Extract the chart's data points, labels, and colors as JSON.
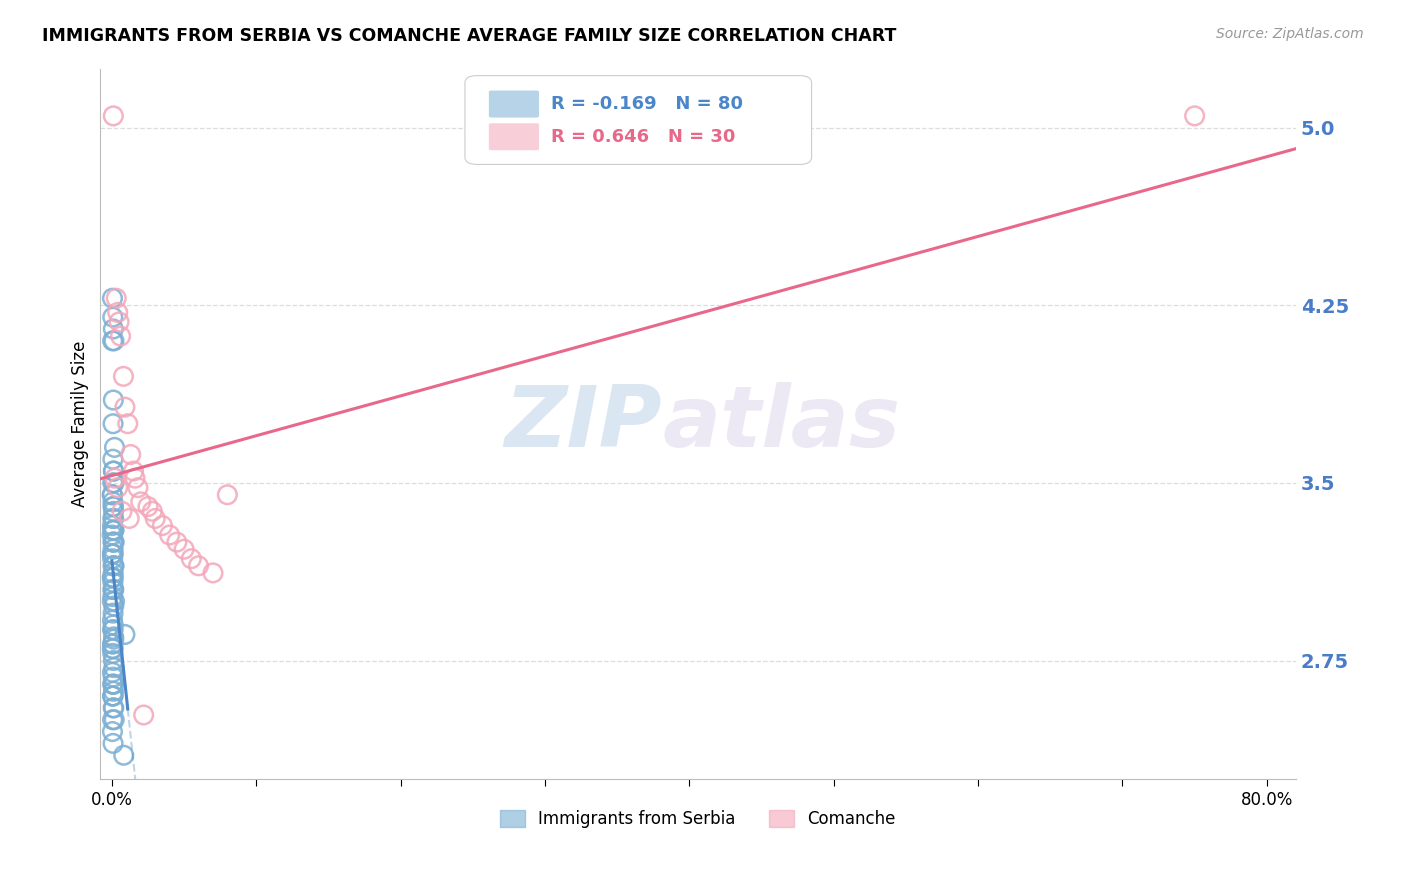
{
  "title": "IMMIGRANTS FROM SERBIA VS COMANCHE AVERAGE FAMILY SIZE CORRELATION CHART",
  "source": "Source: ZipAtlas.com",
  "ylabel": "Average Family Size",
  "xlim": [
    -0.008,
    0.82
  ],
  "ylim": [
    2.25,
    5.25
  ],
  "yticks": [
    2.75,
    3.5,
    4.25,
    5.0
  ],
  "xticks": [
    0.0,
    0.1,
    0.2,
    0.3,
    0.4,
    0.5,
    0.6,
    0.7,
    0.8
  ],
  "xticklabels": [
    "0.0%",
    "",
    "",
    "",
    "",
    "",
    "",
    "",
    "80.0%"
  ],
  "serbia_R": -0.169,
  "serbia_N": 80,
  "comanche_R": 0.646,
  "comanche_N": 30,
  "serbia_color": "#7bafd4",
  "comanche_color": "#f4a7b9",
  "serbia_line_color": "#4a86c8",
  "comanche_line_color": "#e8688a",
  "legend1": "Immigrants from Serbia",
  "legend2": "Comanche",
  "serbia_x": [
    0.0005,
    0.001,
    0.0008,
    0.0012,
    0.0015,
    0.0003,
    0.0007,
    0.0009,
    0.0011,
    0.0006,
    0.0004,
    0.0013,
    0.0002,
    0.0016,
    0.0008,
    0.001,
    0.0005,
    0.0014,
    0.0009,
    0.0003,
    0.0007,
    0.0011,
    0.0006,
    0.0018,
    0.0013,
    0.0008,
    0.0004,
    0.0009,
    0.0005,
    0.0012,
    0.0007,
    0.0003,
    0.0006,
    0.001,
    0.0014,
    0.0004,
    0.0009,
    0.0005,
    0.0011,
    0.0008,
    0.0003,
    0.0006,
    0.001,
    0.0013,
    0.0004,
    0.0008,
    0.0005,
    0.0012,
    0.0009,
    0.0003,
    0.0006,
    0.001,
    0.0007,
    0.0018,
    0.0014,
    0.0009,
    0.0004,
    0.0008,
    0.0005,
    0.0013,
    0.0005,
    0.0009,
    0.0006,
    0.0012,
    0.0008,
    0.0004,
    0.0016,
    0.0013,
    0.0005,
    0.0009,
    0.0004,
    0.0006,
    0.001,
    0.0014,
    0.0082,
    0.0009,
    0.0004,
    0.0013,
    0.009,
    0.0008
  ],
  "serbia_y": [
    4.1,
    3.85,
    3.75,
    3.55,
    3.5,
    3.45,
    3.42,
    3.4,
    3.38,
    3.35,
    3.32,
    3.3,
    3.28,
    3.25,
    3.22,
    3.2,
    3.18,
    3.15,
    3.12,
    3.1,
    3.08,
    3.05,
    3.02,
    3.0,
    2.98,
    2.95,
    2.92,
    2.9,
    2.88,
    2.85,
    2.82,
    2.8,
    2.78,
    2.75,
    2.72,
    2.7,
    2.68,
    2.65,
    2.62,
    2.6,
    3.0,
    3.05,
    3.1,
    3.15,
    3.2,
    3.25,
    3.3,
    3.35,
    3.4,
    3.45,
    3.5,
    3.55,
    3.6,
    3.65,
    3.3,
    3.25,
    3.2,
    3.15,
    3.1,
    3.05,
    2.5,
    2.55,
    2.6,
    2.65,
    2.4,
    2.45,
    2.5,
    2.55,
    2.6,
    2.65,
    4.28,
    4.2,
    4.15,
    4.1,
    2.35,
    2.8,
    2.82,
    2.84,
    2.86,
    2.88
  ],
  "comanche_x": [
    0.001,
    0.003,
    0.004,
    0.005,
    0.006,
    0.008,
    0.009,
    0.011,
    0.013,
    0.015,
    0.016,
    0.018,
    0.02,
    0.025,
    0.028,
    0.03,
    0.035,
    0.04,
    0.045,
    0.05,
    0.055,
    0.06,
    0.07,
    0.08,
    0.002,
    0.004,
    0.007,
    0.012,
    0.022,
    0.75
  ],
  "comanche_y": [
    5.05,
    4.28,
    4.22,
    4.18,
    4.12,
    3.95,
    3.82,
    3.75,
    3.62,
    3.55,
    3.52,
    3.48,
    3.42,
    3.4,
    3.38,
    3.35,
    3.32,
    3.28,
    3.25,
    3.22,
    3.18,
    3.15,
    3.12,
    3.45,
    3.52,
    3.48,
    3.38,
    3.35,
    2.52,
    5.05
  ],
  "watermark_zip": "ZIP",
  "watermark_atlas": "atlas",
  "background_color": "#ffffff",
  "grid_color": "#dddddd"
}
